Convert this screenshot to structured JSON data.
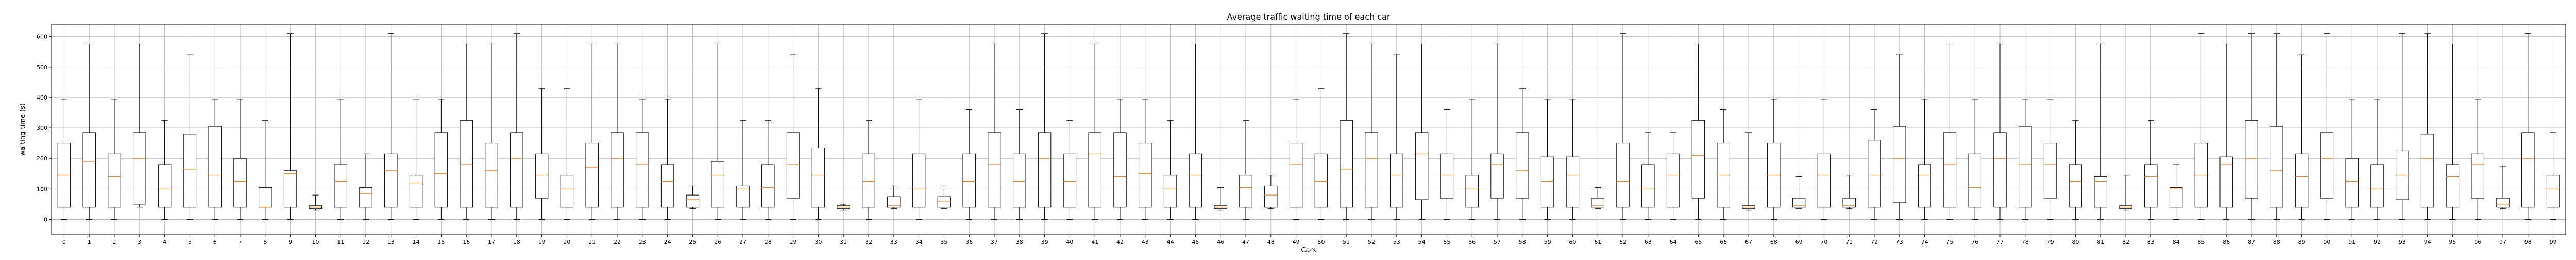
{
  "chart_data": {
    "type": "boxplot",
    "title": "Average traffic waiting time of each car",
    "xlabel": "Cars",
    "ylabel": "waiting time (s)",
    "ylim": [
      -50,
      640
    ],
    "yticks": [
      0,
      100,
      200,
      300,
      400,
      500,
      600
    ],
    "grid": true,
    "colors": {
      "box": "#000000",
      "median": "#ff7f0e",
      "grid": "#b0b0b0"
    },
    "categories": [
      "0",
      "1",
      "2",
      "3",
      "4",
      "5",
      "6",
      "7",
      "8",
      "9",
      "10",
      "11",
      "12",
      "13",
      "14",
      "15",
      "16",
      "17",
      "18",
      "19",
      "20",
      "21",
      "22",
      "23",
      "24",
      "25",
      "26",
      "27",
      "28",
      "29",
      "30",
      "31",
      "32",
      "33",
      "34",
      "35",
      "36",
      "37",
      "38",
      "39",
      "40",
      "41",
      "42",
      "43",
      "44",
      "45",
      "46",
      "47",
      "48",
      "49",
      "50",
      "51",
      "52",
      "53",
      "54",
      "55",
      "56",
      "57",
      "58",
      "59",
      "60",
      "61",
      "62",
      "63",
      "64",
      "65",
      "66",
      "67",
      "68",
      "69",
      "70",
      "71",
      "72",
      "73",
      "74",
      "75",
      "76",
      "77",
      "78",
      "79",
      "80",
      "81",
      "82",
      "83",
      "84",
      "85",
      "86",
      "87",
      "88",
      "89",
      "90",
      "91",
      "92",
      "93",
      "94",
      "95",
      "96",
      "97",
      "98",
      "99"
    ],
    "boxes": [
      {
        "whislo": 0,
        "q1": 40,
        "med": 145,
        "q3": 250,
        "whishi": 395
      },
      {
        "whislo": 0,
        "q1": 40,
        "med": 190,
        "q3": 285,
        "whishi": 575
      },
      {
        "whislo": 0,
        "q1": 40,
        "med": 140,
        "q3": 215,
        "whishi": 395
      },
      {
        "whislo": 40,
        "q1": 50,
        "med": 200,
        "q3": 285,
        "whishi": 575
      },
      {
        "whislo": 0,
        "q1": 40,
        "med": 100,
        "q3": 180,
        "whishi": 325
      },
      {
        "whislo": 0,
        "q1": 40,
        "med": 165,
        "q3": 280,
        "whishi": 540
      },
      {
        "whislo": 0,
        "q1": 40,
        "med": 145,
        "q3": 305,
        "whishi": 395
      },
      {
        "whislo": 0,
        "q1": 40,
        "med": 125,
        "q3": 200,
        "whishi": 395
      },
      {
        "whislo": 0,
        "q1": 40,
        "med": 40,
        "q3": 105,
        "whishi": 325
      },
      {
        "whislo": 0,
        "q1": 40,
        "med": 150,
        "q3": 160,
        "whishi": 610
      },
      {
        "whislo": 30,
        "q1": 35,
        "med": 40,
        "q3": 45,
        "whishi": 80
      },
      {
        "whislo": 0,
        "q1": 40,
        "med": 125,
        "q3": 180,
        "whishi": 395
      },
      {
        "whislo": 0,
        "q1": 40,
        "med": 85,
        "q3": 105,
        "whishi": 215
      },
      {
        "whislo": 0,
        "q1": 40,
        "med": 160,
        "q3": 215,
        "whishi": 610
      },
      {
        "whislo": 0,
        "q1": 40,
        "med": 120,
        "q3": 145,
        "whishi": 395
      },
      {
        "whislo": 0,
        "q1": 40,
        "med": 150,
        "q3": 285,
        "whishi": 395
      },
      {
        "whislo": 0,
        "q1": 40,
        "med": 180,
        "q3": 325,
        "whishi": 575
      },
      {
        "whislo": 0,
        "q1": 40,
        "med": 160,
        "q3": 250,
        "whishi": 575
      },
      {
        "whislo": 0,
        "q1": 40,
        "med": 200,
        "q3": 285,
        "whishi": 610
      },
      {
        "whislo": 0,
        "q1": 70,
        "med": 145,
        "q3": 215,
        "whishi": 430
      },
      {
        "whislo": 0,
        "q1": 40,
        "med": 100,
        "q3": 145,
        "whishi": 430
      },
      {
        "whislo": 0,
        "q1": 40,
        "med": 170,
        "q3": 250,
        "whishi": 575
      },
      {
        "whislo": 0,
        "q1": 40,
        "med": 200,
        "q3": 285,
        "whishi": 575
      },
      {
        "whislo": 0,
        "q1": 40,
        "med": 180,
        "q3": 285,
        "whishi": 395
      },
      {
        "whislo": 0,
        "q1": 40,
        "med": 125,
        "q3": 180,
        "whishi": 395
      },
      {
        "whislo": 35,
        "q1": 40,
        "med": 65,
        "q3": 80,
        "whishi": 110
      },
      {
        "whislo": 0,
        "q1": 40,
        "med": 145,
        "q3": 190,
        "whishi": 575
      },
      {
        "whislo": 0,
        "q1": 40,
        "med": 100,
        "q3": 110,
        "whishi": 325
      },
      {
        "whislo": 0,
        "q1": 40,
        "med": 105,
        "q3": 180,
        "whishi": 325
      },
      {
        "whislo": 0,
        "q1": 70,
        "med": 180,
        "q3": 285,
        "whishi": 540
      },
      {
        "whislo": 0,
        "q1": 40,
        "med": 145,
        "q3": 235,
        "whishi": 430
      },
      {
        "whislo": 30,
        "q1": 35,
        "med": 40,
        "q3": 45,
        "whishi": 50
      },
      {
        "whislo": 0,
        "q1": 40,
        "med": 125,
        "q3": 215,
        "whishi": 325
      },
      {
        "whislo": 35,
        "q1": 40,
        "med": 45,
        "q3": 75,
        "whishi": 110
      },
      {
        "whislo": 0,
        "q1": 40,
        "med": 100,
        "q3": 215,
        "whishi": 395
      },
      {
        "whislo": 35,
        "q1": 40,
        "med": 60,
        "q3": 75,
        "whishi": 110
      },
      {
        "whislo": 0,
        "q1": 40,
        "med": 125,
        "q3": 215,
        "whishi": 360
      },
      {
        "whislo": 0,
        "q1": 40,
        "med": 180,
        "q3": 285,
        "whishi": 575
      },
      {
        "whislo": 0,
        "q1": 40,
        "med": 125,
        "q3": 215,
        "whishi": 360
      },
      {
        "whislo": 0,
        "q1": 40,
        "med": 200,
        "q3": 285,
        "whishi": 610
      },
      {
        "whislo": 0,
        "q1": 40,
        "med": 125,
        "q3": 215,
        "whishi": 325
      },
      {
        "whislo": 0,
        "q1": 40,
        "med": 215,
        "q3": 285,
        "whishi": 575
      },
      {
        "whislo": 0,
        "q1": 40,
        "med": 140,
        "q3": 285,
        "whishi": 395
      },
      {
        "whislo": 0,
        "q1": 40,
        "med": 150,
        "q3": 250,
        "whishi": 395
      },
      {
        "whislo": 0,
        "q1": 40,
        "med": 100,
        "q3": 145,
        "whishi": 325
      },
      {
        "whislo": 0,
        "q1": 40,
        "med": 145,
        "q3": 215,
        "whishi": 575
      },
      {
        "whislo": 30,
        "q1": 35,
        "med": 40,
        "q3": 45,
        "whishi": 105
      },
      {
        "whislo": 0,
        "q1": 40,
        "med": 105,
        "q3": 145,
        "whishi": 325
      },
      {
        "whislo": 35,
        "q1": 40,
        "med": 80,
        "q3": 110,
        "whishi": 145
      },
      {
        "whislo": 0,
        "q1": 40,
        "med": 180,
        "q3": 250,
        "whishi": 395
      },
      {
        "whislo": 0,
        "q1": 40,
        "med": 125,
        "q3": 215,
        "whishi": 430
      },
      {
        "whislo": 0,
        "q1": 40,
        "med": 165,
        "q3": 325,
        "whishi": 610
      },
      {
        "whislo": 0,
        "q1": 40,
        "med": 200,
        "q3": 285,
        "whishi": 575
      },
      {
        "whislo": 0,
        "q1": 40,
        "med": 145,
        "q3": 215,
        "whishi": 540
      },
      {
        "whislo": 0,
        "q1": 65,
        "med": 215,
        "q3": 285,
        "whishi": 575
      },
      {
        "whislo": 0,
        "q1": 70,
        "med": 145,
        "q3": 215,
        "whishi": 360
      },
      {
        "whislo": 0,
        "q1": 40,
        "med": 100,
        "q3": 145,
        "whishi": 395
      },
      {
        "whislo": 0,
        "q1": 70,
        "med": 180,
        "q3": 215,
        "whishi": 575
      },
      {
        "whislo": 0,
        "q1": 70,
        "med": 160,
        "q3": 285,
        "whishi": 430
      },
      {
        "whislo": 0,
        "q1": 40,
        "med": 125,
        "q3": 205,
        "whishi": 395
      },
      {
        "whislo": 0,
        "q1": 40,
        "med": 145,
        "q3": 205,
        "whishi": 395
      },
      {
        "whislo": 35,
        "q1": 40,
        "med": 45,
        "q3": 70,
        "whishi": 105
      },
      {
        "whislo": 0,
        "q1": 40,
        "med": 125,
        "q3": 250,
        "whishi": 610
      },
      {
        "whislo": 0,
        "q1": 40,
        "med": 100,
        "q3": 180,
        "whishi": 285
      },
      {
        "whislo": 0,
        "q1": 40,
        "med": 145,
        "q3": 215,
        "whishi": 285
      },
      {
        "whislo": 0,
        "q1": 70,
        "med": 210,
        "q3": 325,
        "whishi": 575
      },
      {
        "whislo": 0,
        "q1": 40,
        "med": 145,
        "q3": 250,
        "whishi": 360
      },
      {
        "whislo": 30,
        "q1": 35,
        "med": 40,
        "q3": 45,
        "whishi": 285
      },
      {
        "whislo": 0,
        "q1": 40,
        "med": 145,
        "q3": 250,
        "whishi": 395
      },
      {
        "whislo": 35,
        "q1": 40,
        "med": 45,
        "q3": 70,
        "whishi": 140
      },
      {
        "whislo": 0,
        "q1": 40,
        "med": 145,
        "q3": 215,
        "whishi": 395
      },
      {
        "whislo": 35,
        "q1": 40,
        "med": 45,
        "q3": 70,
        "whishi": 145
      },
      {
        "whislo": 0,
        "q1": 40,
        "med": 145,
        "q3": 260,
        "whishi": 360
      },
      {
        "whislo": 0,
        "q1": 55,
        "med": 200,
        "q3": 305,
        "whishi": 540
      },
      {
        "whislo": 0,
        "q1": 40,
        "med": 145,
        "q3": 180,
        "whishi": 395
      },
      {
        "whislo": 0,
        "q1": 40,
        "med": 180,
        "q3": 285,
        "whishi": 575
      },
      {
        "whislo": 0,
        "q1": 40,
        "med": 105,
        "q3": 215,
        "whishi": 395
      },
      {
        "whislo": 0,
        "q1": 40,
        "med": 200,
        "q3": 285,
        "whishi": 575
      },
      {
        "whislo": 0,
        "q1": 40,
        "med": 180,
        "q3": 305,
        "whishi": 395
      },
      {
        "whislo": 0,
        "q1": 70,
        "med": 180,
        "q3": 250,
        "whishi": 395
      },
      {
        "whislo": 0,
        "q1": 40,
        "med": 125,
        "q3": 180,
        "whishi": 325
      },
      {
        "whislo": 0,
        "q1": 40,
        "med": 125,
        "q3": 140,
        "whishi": 575
      },
      {
        "whislo": 30,
        "q1": 35,
        "med": 40,
        "q3": 45,
        "whishi": 145
      },
      {
        "whislo": 0,
        "q1": 40,
        "med": 140,
        "q3": 180,
        "whishi": 325
      },
      {
        "whislo": 0,
        "q1": 40,
        "med": 100,
        "q3": 105,
        "whishi": 180
      },
      {
        "whislo": 0,
        "q1": 40,
        "med": 145,
        "q3": 250,
        "whishi": 610
      },
      {
        "whislo": 0,
        "q1": 40,
        "med": 180,
        "q3": 205,
        "whishi": 575
      },
      {
        "whislo": 0,
        "q1": 70,
        "med": 200,
        "q3": 325,
        "whishi": 610
      },
      {
        "whislo": 0,
        "q1": 40,
        "med": 160,
        "q3": 305,
        "whishi": 610
      },
      {
        "whislo": 0,
        "q1": 40,
        "med": 140,
        "q3": 215,
        "whishi": 540
      },
      {
        "whislo": 0,
        "q1": 70,
        "med": 200,
        "q3": 285,
        "whishi": 610
      },
      {
        "whislo": 0,
        "q1": 40,
        "med": 125,
        "q3": 200,
        "whishi": 395
      },
      {
        "whislo": 0,
        "q1": 40,
        "med": 100,
        "q3": 180,
        "whishi": 395
      },
      {
        "whislo": 0,
        "q1": 65,
        "med": 145,
        "q3": 225,
        "whishi": 610
      },
      {
        "whislo": 0,
        "q1": 40,
        "med": 200,
        "q3": 280,
        "whishi": 610
      },
      {
        "whislo": 0,
        "q1": 40,
        "med": 140,
        "q3": 180,
        "whishi": 575
      },
      {
        "whislo": 0,
        "q1": 70,
        "med": 180,
        "q3": 215,
        "whishi": 395
      },
      {
        "whislo": 35,
        "q1": 40,
        "med": 50,
        "q3": 70,
        "whishi": 175
      },
      {
        "whislo": 0,
        "q1": 40,
        "med": 200,
        "q3": 285,
        "whishi": 610
      },
      {
        "whislo": 0,
        "q1": 40,
        "med": 100,
        "q3": 145,
        "whishi": 285
      }
    ]
  }
}
